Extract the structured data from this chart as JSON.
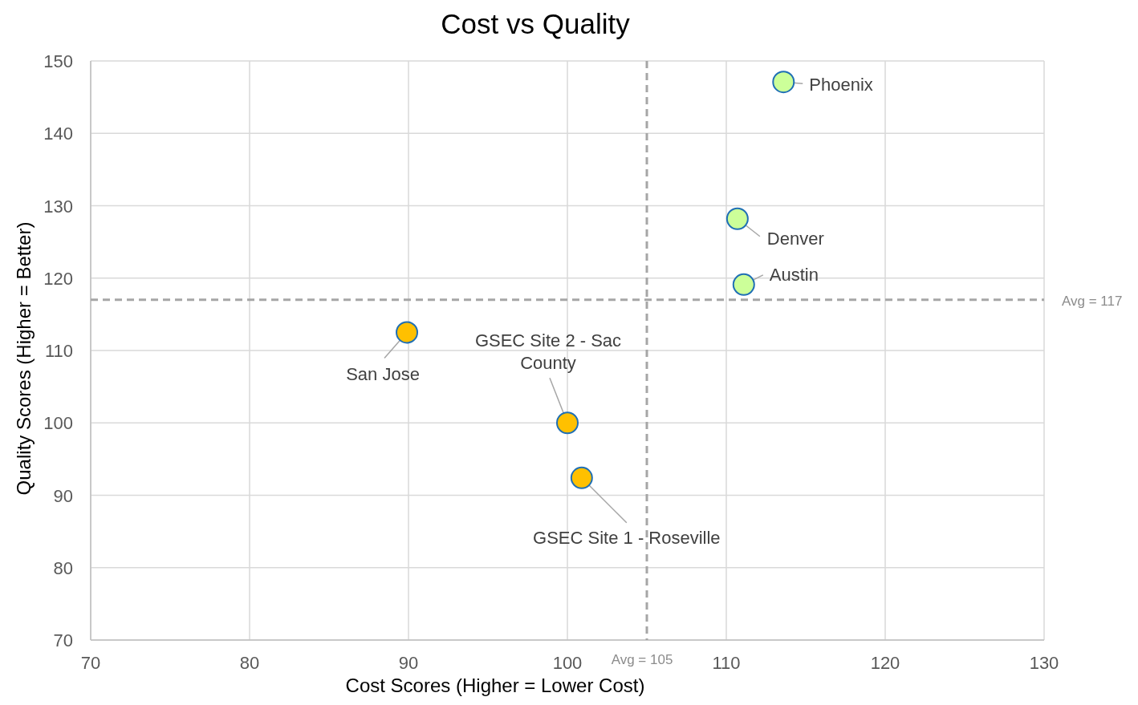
{
  "chart_data": {
    "type": "scatter",
    "title": "Cost vs Quality",
    "xlabel": "Cost Scores (Higher = Lower Cost)",
    "ylabel": "Quality Scores (Higher = Better)",
    "x": [
      113.6,
      110.7,
      111.1,
      89.9,
      100,
      100.9
    ],
    "values": [
      147.1,
      128.2,
      119.1,
      112.5,
      100,
      92.4
    ],
    "colors": [
      "#ccff99",
      "#ccff99",
      "#ccff99",
      "#ffc000",
      "#ffc000",
      "#ffc000"
    ],
    "xlim": [
      70,
      130
    ],
    "xticks": [
      70,
      80,
      90,
      100,
      110,
      120,
      130
    ],
    "ylim": [
      70,
      150
    ],
    "yticks": [
      70,
      80,
      90,
      100,
      110,
      120,
      130,
      140,
      150
    ],
    "grid": true,
    "marker": "circle",
    "ref_lines": [
      {
        "axis": "x",
        "value": 105,
        "label": "Avg = 105",
        "color": "#a6a6a6",
        "line_style": "dashed"
      },
      {
        "axis": "y",
        "value": 117,
        "label": "Avg = 117",
        "color": "#a6a6a6",
        "line_style": "dashed"
      }
    ],
    "annotations": [
      {
        "text": "Phoenix",
        "x": 113.6,
        "y": 147.1
      },
      {
        "text": "Denver",
        "x": 110.7,
        "y": 128.2
      },
      {
        "text": "Austin",
        "x": 111.1,
        "y": 119.1
      },
      {
        "text": "San Jose",
        "x": 89.9,
        "y": 112.5
      },
      {
        "text": "GSEC Site 2 - Sac County",
        "x": 100,
        "y": 100
      },
      {
        "text": "GSEC Site 1 - Roseville",
        "x": 100.9,
        "y": 92.4
      }
    ]
  }
}
